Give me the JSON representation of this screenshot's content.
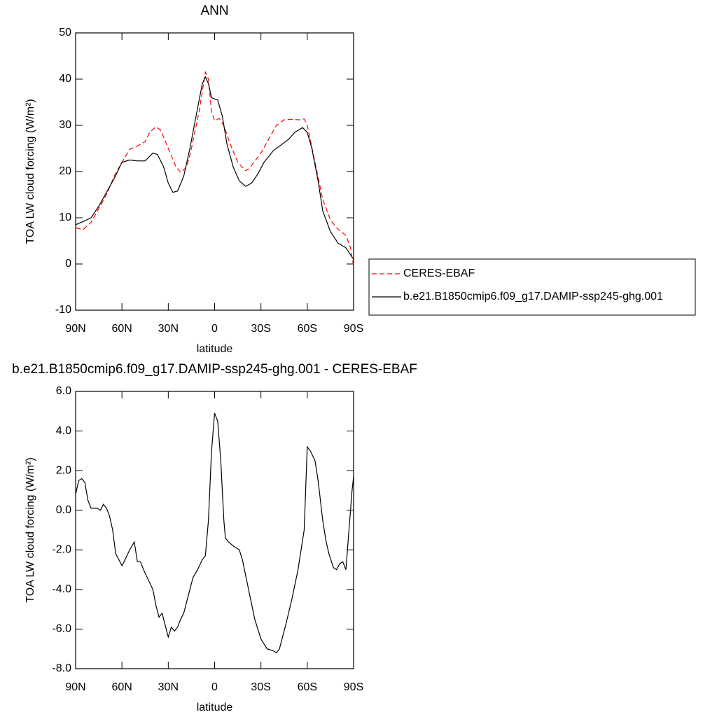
{
  "chart_data": [
    {
      "type": "line",
      "title": "ANN",
      "x_label": "latitude",
      "y_label": "TOA LW cloud forcing (W/m²)",
      "xlim": [
        90,
        -90
      ],
      "xticks": [
        {
          "value": 90,
          "label": "90N"
        },
        {
          "value": 60,
          "label": "60N"
        },
        {
          "value": 30,
          "label": "30N"
        },
        0,
        {
          "value": -30,
          "label": "30S"
        },
        {
          "value": -60,
          "label": "60S"
        },
        {
          "value": -90,
          "label": "90S"
        }
      ],
      "ylim": [
        -10,
        50
      ],
      "yticks": [
        -10,
        0,
        10,
        20,
        30,
        40,
        50
      ],
      "legend": "right",
      "series": [
        {
          "name": "CERES-EBAF",
          "color": "#ff0000",
          "dash": true,
          "x": [
            90,
            85,
            80,
            75,
            70,
            65,
            60,
            55,
            50,
            45,
            42,
            38,
            35,
            30,
            25,
            22,
            18,
            15,
            10,
            6,
            4,
            2,
            0,
            -3,
            -6,
            -10,
            -15,
            -20,
            -22,
            -30,
            -35,
            -40,
            -45,
            -50,
            -55,
            -58,
            -60,
            -65,
            -70,
            -75,
            -80,
            -85,
            -88,
            -90
          ],
          "values": [
            7.8,
            7.5,
            9,
            12,
            15,
            19,
            22,
            24.8,
            25.5,
            26.5,
            28.5,
            29.7,
            29,
            25,
            21,
            19.8,
            21,
            25,
            33,
            41.5,
            40,
            33,
            31,
            31.5,
            30,
            26,
            22,
            20.2,
            20.5,
            24,
            27,
            30,
            31.2,
            31.3,
            31.2,
            31.4,
            30,
            22,
            14,
            9.5,
            7.5,
            6.2,
            3.5,
            -0.5
          ]
        },
        {
          "name": "b.e21.B1850cmip6.f09_g17.DAMIP-ssp245-ghg.001",
          "color": "#000000",
          "dash": false,
          "x": [
            90,
            85,
            80,
            75,
            70,
            65,
            60,
            55,
            50,
            45,
            40,
            37,
            33,
            30,
            27,
            24,
            20,
            16,
            12,
            8,
            6,
            4,
            2,
            0,
            -2,
            -5,
            -8,
            -12,
            -16,
            -20,
            -24,
            -28,
            -32,
            -38,
            -42,
            -48,
            -52,
            -57,
            -60,
            -63,
            -67,
            -70,
            -75,
            -80,
            -85,
            -90
          ],
          "values": [
            8.5,
            9.2,
            10,
            12.5,
            15.5,
            18.5,
            22,
            22.5,
            22.3,
            22.3,
            24,
            23.7,
            21,
            17.5,
            15.5,
            15.8,
            19,
            25,
            32,
            39,
            40.5,
            39,
            36,
            35.7,
            35.5,
            32,
            26,
            21,
            18,
            16.8,
            17.5,
            19.5,
            22,
            24.5,
            25.5,
            27,
            28.5,
            29.5,
            28.5,
            25,
            18,
            11.5,
            7,
            4.5,
            3.5,
            1
          ]
        }
      ]
    },
    {
      "type": "line",
      "title": "b.e21.B1850cmip6.f09_g17.DAMIP-ssp245-ghg.001 - CERES-EBAF",
      "x_label": "latitude",
      "y_label": "TOA LW cloud forcing (W/m²)",
      "xlim": [
        90,
        -90
      ],
      "xticks": [
        {
          "value": 90,
          "label": "90N"
        },
        {
          "value": 60,
          "label": "60N"
        },
        {
          "value": 30,
          "label": "30N"
        },
        0,
        {
          "value": -30,
          "label": "30S"
        },
        {
          "value": -60,
          "label": "60S"
        },
        {
          "value": -90,
          "label": "90S"
        }
      ],
      "ylim": [
        -8,
        6
      ],
      "yticks": [
        {
          "value": -8,
          "label": "-8.0"
        },
        {
          "value": -6,
          "label": "-6.0"
        },
        {
          "value": -4,
          "label": "-4.0"
        },
        {
          "value": -2,
          "label": "-2.0"
        },
        {
          "value": 0,
          "label": "0.0"
        },
        {
          "value": 2,
          "label": "2.0"
        },
        {
          "value": 4,
          "label": "4.0"
        },
        {
          "value": 6,
          "label": "6.0"
        }
      ],
      "color": "#000000",
      "x": [
        90,
        88,
        86,
        84,
        82,
        80,
        76,
        74,
        72,
        70,
        68,
        66,
        64,
        62,
        60,
        58,
        55,
        52,
        50,
        48,
        46,
        43,
        40,
        38,
        36,
        34,
        32,
        30,
        28,
        26,
        24,
        22,
        20,
        17,
        14,
        11,
        8,
        6,
        4,
        2,
        0,
        -2,
        -4,
        -6,
        -7,
        -9,
        -12,
        -16,
        -18,
        -22,
        -26,
        -30,
        -34,
        -38,
        -40,
        -42,
        -44,
        -46,
        -50,
        -54,
        -58,
        -60,
        -62,
        -65,
        -67,
        -70,
        -72,
        -74,
        -77,
        -79,
        -81,
        -83,
        -85,
        -87,
        -89,
        -90
      ],
      "values": [
        0.8,
        1.5,
        1.6,
        1.4,
        0.5,
        0.1,
        0.1,
        0,
        0.3,
        0.1,
        -0.3,
        -1,
        -2.2,
        -2.5,
        -2.8,
        -2.5,
        -2,
        -1.6,
        -2.6,
        -2.6,
        -3,
        -3.5,
        -4,
        -4.8,
        -5.4,
        -5.2,
        -5.8,
        -6.4,
        -5.9,
        -6.1,
        -5.9,
        -5.5,
        -5.2,
        -4.3,
        -3.4,
        -3,
        -2.5,
        -2.3,
        -0.5,
        3,
        4.9,
        4.5,
        2.5,
        -0.5,
        -1.4,
        -1.6,
        -1.8,
        -2,
        -2.5,
        -4,
        -5.5,
        -6.5,
        -7,
        -7.1,
        -7.2,
        -7,
        -6.4,
        -5.8,
        -4.5,
        -3,
        -1,
        3.2,
        3,
        2.5,
        1.5,
        -0.5,
        -1.5,
        -2.2,
        -2.9,
        -3,
        -2.7,
        -2.6,
        -3,
        -1,
        1,
        1.7
      ]
    }
  ]
}
